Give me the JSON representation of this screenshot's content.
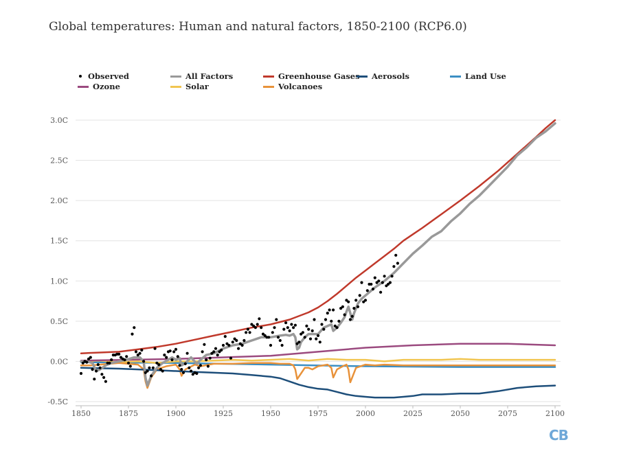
{
  "chart_data": {
    "type": "line",
    "title": "Global temperatures: Human and natural factors, 1850-2100 (RCP6.0)",
    "xlabel": "",
    "ylabel": "",
    "xlim": [
      1850,
      2100
    ],
    "ylim": [
      -0.5,
      3.0
    ],
    "grid": true,
    "legend_position": "top",
    "x_ticks": [
      1850,
      1875,
      1900,
      1925,
      1950,
      1975,
      2000,
      2025,
      2050,
      2075,
      2100
    ],
    "x_tick_labels": [
      "1850",
      "1875",
      "1900",
      "1925",
      "1950",
      "1975",
      "2000",
      "2025",
      "2050",
      "2075",
      "2100"
    ],
    "y_ticks": [
      -0.5,
      0.0,
      0.5,
      1.0,
      1.5,
      2.0,
      2.5,
      3.0
    ],
    "y_tick_labels": [
      "-0.5C",
      "0.0C",
      "0.5C",
      "1.0C",
      "1.5C",
      "2.0C",
      "2.5C",
      "3.0C"
    ],
    "observed": {
      "name": "Observed",
      "color": "#000000",
      "points": [
        [
          1850,
          -0.15
        ],
        [
          1851,
          -0.02
        ],
        [
          1852,
          0.0
        ],
        [
          1853,
          -0.01
        ],
        [
          1854,
          0.03
        ],
        [
          1855,
          0.05
        ],
        [
          1856,
          -0.1
        ],
        [
          1857,
          -0.22
        ],
        [
          1858,
          -0.12
        ],
        [
          1859,
          -0.04
        ],
        [
          1860,
          -0.08
        ],
        [
          1861,
          -0.16
        ],
        [
          1862,
          -0.2
        ],
        [
          1863,
          -0.25
        ],
        [
          1864,
          -0.02
        ],
        [
          1865,
          -0.02
        ],
        [
          1866,
          0.02
        ],
        [
          1867,
          0.08
        ],
        [
          1868,
          0.08
        ],
        [
          1869,
          0.09
        ],
        [
          1870,
          0.09
        ],
        [
          1871,
          0.05
        ],
        [
          1872,
          0.03
        ],
        [
          1873,
          0.02
        ],
        [
          1874,
          0.06
        ],
        [
          1875,
          -0.02
        ],
        [
          1876,
          -0.06
        ],
        [
          1877,
          0.34
        ],
        [
          1878,
          0.42
        ],
        [
          1879,
          0.12
        ],
        [
          1880,
          0.08
        ],
        [
          1881,
          0.1
        ],
        [
          1882,
          0.14
        ],
        [
          1883,
          0.0
        ],
        [
          1884,
          -0.14
        ],
        [
          1885,
          -0.12
        ],
        [
          1886,
          -0.08
        ],
        [
          1887,
          -0.18
        ],
        [
          1888,
          -0.08
        ],
        [
          1889,
          0.16
        ],
        [
          1890,
          -0.02
        ],
        [
          1891,
          -0.04
        ],
        [
          1892,
          -0.1
        ],
        [
          1893,
          -0.12
        ],
        [
          1894,
          0.08
        ],
        [
          1895,
          0.05
        ],
        [
          1896,
          0.12
        ],
        [
          1897,
          0.13
        ],
        [
          1898,
          0.02
        ],
        [
          1899,
          0.12
        ],
        [
          1900,
          0.15
        ],
        [
          1901,
          0.06
        ],
        [
          1902,
          -0.05
        ],
        [
          1903,
          -0.1
        ],
        [
          1904,
          -0.14
        ],
        [
          1905,
          -0.03
        ],
        [
          1906,
          0.1
        ],
        [
          1907,
          -0.08
        ],
        [
          1908,
          -0.12
        ],
        [
          1909,
          -0.16
        ],
        [
          1910,
          -0.14
        ],
        [
          1911,
          -0.15
        ],
        [
          1912,
          -0.08
        ],
        [
          1913,
          -0.05
        ],
        [
          1914,
          0.12
        ],
        [
          1915,
          0.21
        ],
        [
          1916,
          0.02
        ],
        [
          1917,
          -0.06
        ],
        [
          1918,
          0.04
        ],
        [
          1919,
          0.1
        ],
        [
          1920,
          0.12
        ],
        [
          1921,
          0.16
        ],
        [
          1922,
          0.08
        ],
        [
          1923,
          0.12
        ],
        [
          1924,
          0.14
        ],
        [
          1925,
          0.2
        ],
        [
          1926,
          0.31
        ],
        [
          1927,
          0.22
        ],
        [
          1928,
          0.2
        ],
        [
          1929,
          0.04
        ],
        [
          1930,
          0.24
        ],
        [
          1931,
          0.28
        ],
        [
          1932,
          0.26
        ],
        [
          1933,
          0.16
        ],
        [
          1934,
          0.22
        ],
        [
          1935,
          0.2
        ],
        [
          1936,
          0.26
        ],
        [
          1937,
          0.36
        ],
        [
          1938,
          0.4
        ],
        [
          1939,
          0.36
        ],
        [
          1940,
          0.46
        ],
        [
          1941,
          0.44
        ],
        [
          1942,
          0.42
        ],
        [
          1943,
          0.46
        ],
        [
          1944,
          0.53
        ],
        [
          1945,
          0.42
        ],
        [
          1946,
          0.34
        ],
        [
          1947,
          0.32
        ],
        [
          1948,
          0.3
        ],
        [
          1949,
          0.3
        ],
        [
          1950,
          0.2
        ],
        [
          1951,
          0.36
        ],
        [
          1952,
          0.42
        ],
        [
          1953,
          0.52
        ],
        [
          1954,
          0.3
        ],
        [
          1955,
          0.26
        ],
        [
          1956,
          0.2
        ],
        [
          1957,
          0.4
        ],
        [
          1958,
          0.48
        ],
        [
          1959,
          0.42
        ],
        [
          1960,
          0.38
        ],
        [
          1961,
          0.46
        ],
        [
          1962,
          0.42
        ],
        [
          1963,
          0.45
        ],
        [
          1964,
          0.22
        ],
        [
          1965,
          0.24
        ],
        [
          1966,
          0.34
        ],
        [
          1967,
          0.36
        ],
        [
          1968,
          0.3
        ],
        [
          1969,
          0.44
        ],
        [
          1970,
          0.4
        ],
        [
          1971,
          0.28
        ],
        [
          1972,
          0.38
        ],
        [
          1973,
          0.52
        ],
        [
          1974,
          0.28
        ],
        [
          1975,
          0.32
        ],
        [
          1976,
          0.24
        ],
        [
          1977,
          0.46
        ],
        [
          1978,
          0.4
        ],
        [
          1979,
          0.52
        ],
        [
          1980,
          0.6
        ],
        [
          1981,
          0.64
        ],
        [
          1982,
          0.5
        ],
        [
          1983,
          0.64
        ],
        [
          1984,
          0.44
        ],
        [
          1985,
          0.42
        ],
        [
          1986,
          0.5
        ],
        [
          1987,
          0.66
        ],
        [
          1988,
          0.68
        ],
        [
          1989,
          0.58
        ],
        [
          1990,
          0.76
        ],
        [
          1991,
          0.74
        ],
        [
          1992,
          0.52
        ],
        [
          1993,
          0.56
        ],
        [
          1994,
          0.66
        ],
        [
          1995,
          0.76
        ],
        [
          1996,
          0.68
        ],
        [
          1997,
          0.82
        ],
        [
          1998,
          0.98
        ],
        [
          1999,
          0.74
        ],
        [
          2000,
          0.76
        ],
        [
          2001,
          0.88
        ],
        [
          2002,
          0.96
        ],
        [
          2003,
          0.96
        ],
        [
          2004,
          0.9
        ],
        [
          2005,
          1.04
        ],
        [
          2006,
          0.98
        ],
        [
          2007,
          1.0
        ],
        [
          2008,
          0.86
        ],
        [
          2009,
          0.98
        ],
        [
          2010,
          1.06
        ],
        [
          2011,
          0.94
        ],
        [
          2012,
          0.96
        ],
        [
          2013,
          0.98
        ],
        [
          2014,
          1.06
        ],
        [
          2015,
          1.18
        ],
        [
          2016,
          1.32
        ],
        [
          2017,
          1.22
        ]
      ]
    },
    "series": [
      {
        "name": "All Factors",
        "color": "#999999",
        "width": 3.5,
        "x": [
          1850,
          1853,
          1856,
          1858,
          1860,
          1863,
          1866,
          1870,
          1874,
          1878,
          1881,
          1883,
          1884,
          1885,
          1887,
          1890,
          1893,
          1896,
          1898,
          1900,
          1902,
          1903,
          1905,
          1908,
          1911,
          1913,
          1916,
          1920,
          1925,
          1930,
          1935,
          1940,
          1945,
          1950,
          1955,
          1958,
          1960,
          1962,
          1963,
          1964,
          1965,
          1966,
          1968,
          1970,
          1972,
          1975,
          1978,
          1980,
          1982,
          1983,
          1985,
          1987,
          1989,
          1990,
          1991,
          1992,
          1993,
          1994,
          1996,
          1998,
          2000,
          2005,
          2010,
          2015,
          2020,
          2025,
          2030,
          2035,
          2040,
          2045,
          2050,
          2055,
          2060,
          2065,
          2070,
          2075,
          2080,
          2085,
          2090,
          2095,
          2100
        ],
        "y": [
          0.0,
          0.0,
          -0.02,
          -0.12,
          -0.1,
          -0.05,
          -0.02,
          0.0,
          0.02,
          0.05,
          0.05,
          0.0,
          -0.2,
          -0.3,
          -0.18,
          -0.08,
          -0.02,
          0.02,
          0.05,
          0.02,
          0.04,
          -0.05,
          -0.02,
          0.05,
          -0.03,
          0.02,
          0.08,
          0.1,
          0.16,
          0.2,
          0.22,
          0.26,
          0.3,
          0.3,
          0.32,
          0.33,
          0.32,
          0.34,
          0.3,
          0.15,
          0.17,
          0.24,
          0.3,
          0.34,
          0.34,
          0.34,
          0.42,
          0.44,
          0.46,
          0.38,
          0.42,
          0.48,
          0.55,
          0.62,
          0.68,
          0.6,
          0.52,
          0.6,
          0.72,
          0.78,
          0.82,
          0.92,
          1.0,
          1.1,
          1.22,
          1.34,
          1.44,
          1.55,
          1.62,
          1.74,
          1.84,
          1.96,
          2.06,
          2.18,
          2.3,
          2.42,
          2.56,
          2.66,
          2.78,
          2.86,
          2.96
        ]
      },
      {
        "name": "Greenhouse Gases",
        "color": "#c0392b",
        "width": 2.5,
        "x": [
          1850,
          1860,
          1870,
          1880,
          1890,
          1900,
          1910,
          1920,
          1930,
          1940,
          1950,
          1960,
          1970,
          1975,
          1980,
          1985,
          1990,
          1995,
          2000,
          2005,
          2010,
          2015,
          2020,
          2025,
          2030,
          2040,
          2050,
          2060,
          2070,
          2080,
          2090,
          2095,
          2100
        ],
        "y": [
          0.1,
          0.11,
          0.12,
          0.15,
          0.18,
          0.22,
          0.27,
          0.32,
          0.37,
          0.42,
          0.46,
          0.52,
          0.61,
          0.67,
          0.75,
          0.84,
          0.94,
          1.04,
          1.13,
          1.22,
          1.31,
          1.4,
          1.5,
          1.58,
          1.66,
          1.83,
          2.0,
          2.18,
          2.37,
          2.58,
          2.79,
          2.9,
          3.0
        ]
      },
      {
        "name": "Aerosols",
        "color": "#1d4e7a",
        "width": 2.5,
        "x": [
          1850,
          1870,
          1890,
          1910,
          1930,
          1940,
          1950,
          1955,
          1960,
          1965,
          1970,
          1975,
          1980,
          1985,
          1990,
          1995,
          2000,
          2005,
          2010,
          2015,
          2020,
          2025,
          2030,
          2035,
          2040,
          2050,
          2060,
          2070,
          2080,
          2090,
          2100
        ],
        "y": [
          -0.08,
          -0.09,
          -0.11,
          -0.13,
          -0.15,
          -0.17,
          -0.19,
          -0.21,
          -0.25,
          -0.29,
          -0.32,
          -0.34,
          -0.35,
          -0.38,
          -0.41,
          -0.43,
          -0.44,
          -0.45,
          -0.45,
          -0.45,
          -0.44,
          -0.43,
          -0.41,
          -0.41,
          -0.41,
          -0.4,
          -0.4,
          -0.37,
          -0.33,
          -0.31,
          -0.3
        ]
      },
      {
        "name": "Land Use",
        "color": "#3b8fc4",
        "width": 2.5,
        "x": [
          1850,
          1900,
          1950,
          2000,
          2050,
          2100
        ],
        "y": [
          -0.01,
          -0.02,
          -0.04,
          -0.06,
          -0.07,
          -0.07
        ]
      },
      {
        "name": "Ozone",
        "color": "#9b4a7f",
        "width": 2.5,
        "x": [
          1850,
          1900,
          1950,
          1975,
          2000,
          2025,
          2050,
          2075,
          2100
        ],
        "y": [
          0.01,
          0.03,
          0.07,
          0.12,
          0.17,
          0.2,
          0.22,
          0.22,
          0.2
        ]
      },
      {
        "name": "Solar",
        "color": "#f1c550",
        "width": 2.5,
        "x": [
          1850,
          1860,
          1870,
          1880,
          1890,
          1900,
          1910,
          1920,
          1930,
          1940,
          1950,
          1960,
          1970,
          1980,
          1990,
          2000,
          2010,
          2020,
          2030,
          2040,
          2050,
          2060,
          2070,
          2080,
          2090,
          2100
        ],
        "y": [
          0.0,
          0.01,
          -0.01,
          0.0,
          -0.02,
          0.0,
          0.0,
          0.01,
          0.02,
          0.01,
          0.02,
          0.03,
          0.01,
          0.03,
          0.02,
          0.02,
          0.0,
          0.02,
          0.02,
          0.02,
          0.03,
          0.02,
          0.02,
          0.02,
          0.02,
          0.02
        ]
      },
      {
        "name": "Volcanoes",
        "color": "#e8923a",
        "width": 2.5,
        "x": [
          1850,
          1855,
          1860,
          1865,
          1870,
          1875,
          1880,
          1883,
          1884,
          1885,
          1887,
          1890,
          1895,
          1900,
          1902,
          1903,
          1905,
          1910,
          1913,
          1920,
          1930,
          1940,
          1950,
          1955,
          1960,
          1962,
          1963,
          1964,
          1966,
          1968,
          1970,
          1972,
          1975,
          1980,
          1982,
          1983,
          1985,
          1988,
          1990,
          1991,
          1992,
          1993,
          1995,
          2000,
          2005,
          2010,
          2020,
          2040,
          2060,
          2080,
          2100
        ],
        "y": [
          -0.05,
          -0.05,
          -0.04,
          -0.03,
          -0.02,
          -0.03,
          -0.04,
          -0.1,
          -0.25,
          -0.33,
          -0.2,
          -0.1,
          -0.06,
          -0.04,
          -0.1,
          -0.18,
          -0.1,
          -0.04,
          -0.06,
          -0.03,
          -0.03,
          -0.02,
          -0.02,
          -0.03,
          -0.03,
          -0.05,
          -0.1,
          -0.22,
          -0.15,
          -0.08,
          -0.08,
          -0.1,
          -0.06,
          -0.04,
          -0.08,
          -0.2,
          -0.1,
          -0.06,
          -0.04,
          -0.1,
          -0.26,
          -0.2,
          -0.08,
          -0.04,
          -0.05,
          -0.04,
          -0.05,
          -0.05,
          -0.05,
          -0.05,
          -0.05
        ]
      }
    ]
  },
  "legend": [
    {
      "label": "Observed",
      "color": "#000000",
      "kind": "dot"
    },
    {
      "label": "All Factors",
      "color": "#999999",
      "kind": "line"
    },
    {
      "label": "Greenhouse Gases",
      "color": "#c0392b",
      "kind": "line"
    },
    {
      "label": "Aerosols",
      "color": "#1d4e7a",
      "kind": "line"
    },
    {
      "label": "Land Use",
      "color": "#3b8fc4",
      "kind": "line"
    },
    {
      "label": "Ozone",
      "color": "#9b4a7f",
      "kind": "line"
    },
    {
      "label": "Solar",
      "color": "#f1c550",
      "kind": "line"
    },
    {
      "label": "Volcanoes",
      "color": "#e8923a",
      "kind": "line"
    }
  ],
  "brand": {
    "logo_text": "CB",
    "logo_color": "#6fa8d8"
  }
}
